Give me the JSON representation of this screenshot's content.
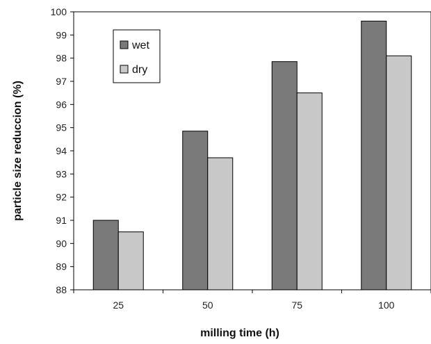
{
  "chart_data": {
    "type": "bar",
    "categories": [
      "25",
      "50",
      "75",
      "100"
    ],
    "series": [
      {
        "name": "wet",
        "values": [
          91.0,
          94.85,
          97.85,
          99.6
        ],
        "color": "#7a7a7a"
      },
      {
        "name": "dry",
        "values": [
          90.5,
          93.7,
          96.5,
          98.1
        ],
        "color": "#c8c8c8"
      }
    ],
    "title": "",
    "xlabel": "milling time (h)",
    "ylabel": "particle size reduccion (%)",
    "ylim": [
      88,
      100
    ],
    "yticks": [
      "88",
      "89",
      "90",
      "91",
      "92",
      "93",
      "94",
      "95",
      "96",
      "97",
      "98",
      "99",
      "100"
    ],
    "grid": false,
    "legend_position": "top-left"
  }
}
